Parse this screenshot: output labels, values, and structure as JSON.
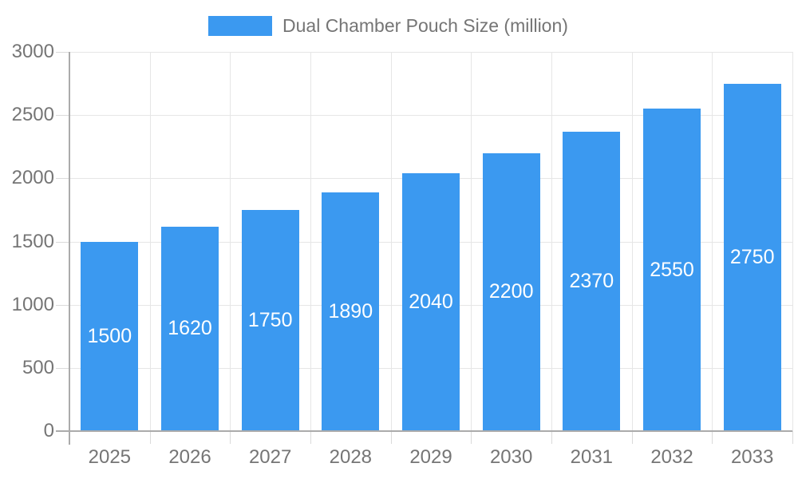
{
  "legend": {
    "label": "Dual Chamber Pouch Size (million)"
  },
  "chart_data": {
    "type": "bar",
    "title": "",
    "legend_label": "Dual Chamber Pouch Size (million)",
    "legend_position": "top",
    "categories": [
      "2025",
      "2026",
      "2027",
      "2028",
      "2029",
      "2030",
      "2031",
      "2032",
      "2033"
    ],
    "series": [
      {
        "name": "Dual Chamber Pouch Size (million)",
        "values": [
          1500,
          1620,
          1750,
          1890,
          2040,
          2200,
          2370,
          2550,
          2750
        ]
      }
    ],
    "xlabel": "",
    "ylabel": "",
    "ylim": [
      0,
      3000
    ],
    "y_ticks": [
      0,
      500,
      1000,
      1500,
      2000,
      2500,
      3000
    ],
    "grid": true,
    "bar_value_labels_visible": true,
    "colors": {
      "bar": "#3B99F0",
      "bar_label": "#FFFFFF",
      "axis_text": "#757575",
      "gridline": "#E6E6E6",
      "axis_line": "#ABABAB"
    }
  }
}
